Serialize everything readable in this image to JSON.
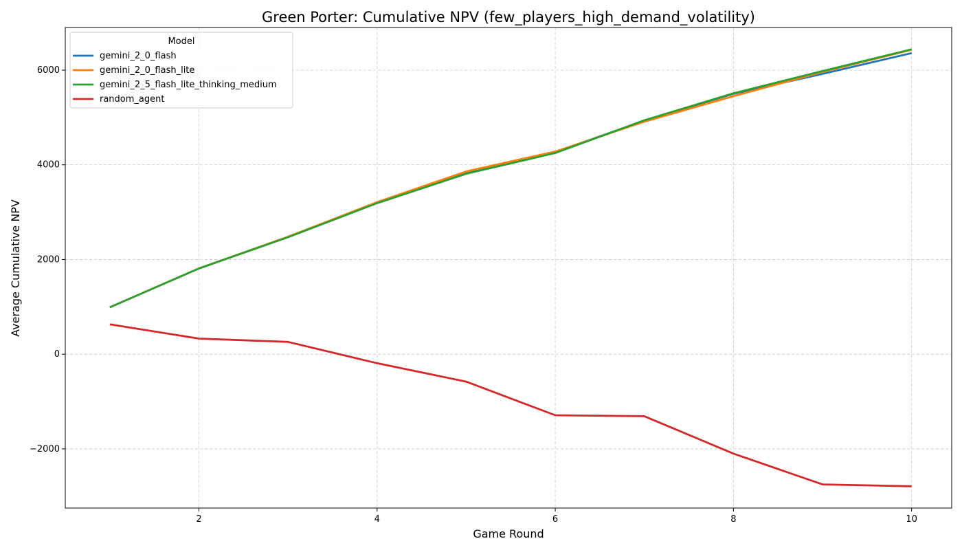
{
  "chart_data": {
    "type": "line",
    "title": "Green Porter: Cumulative NPV (few_players_high_demand_volatility)",
    "xlabel": "Game Round",
    "ylabel": "Average Cumulative NPV",
    "x": [
      1,
      2,
      3,
      4,
      5,
      6,
      7,
      8,
      9,
      10
    ],
    "xlim": [
      0.5,
      10.45
    ],
    "ylim": [
      -3250,
      6900
    ],
    "x_ticks": [
      2,
      4,
      6,
      8,
      10
    ],
    "y_ticks": [
      -2000,
      0,
      2000,
      4000,
      6000
    ],
    "grid": true,
    "legend_title": "Model",
    "legend_position": "top-left",
    "series": [
      {
        "name": "gemini_2_0_flash",
        "color": "#1f77b4",
        "values": [
          990,
          1810,
          2480,
          3200,
          3840,
          4270,
          4930,
          5500,
          5920,
          6360
        ]
      },
      {
        "name": "gemini_2_0_flash_lite",
        "color": "#ff7f0e",
        "values": [
          990,
          1810,
          2480,
          3210,
          3860,
          4280,
          4910,
          5450,
          5960,
          6430
        ]
      },
      {
        "name": "gemini_2_5_flash_lite_thinking_medium",
        "color": "#2ca02c",
        "values": [
          990,
          1810,
          2470,
          3190,
          3810,
          4250,
          4940,
          5510,
          5980,
          6440
        ]
      },
      {
        "name": "random_agent",
        "color": "#d62728",
        "values": [
          630,
          330,
          260,
          -190,
          -580,
          -1290,
          -1310,
          -2100,
          -2750,
          -2790
        ]
      }
    ]
  }
}
